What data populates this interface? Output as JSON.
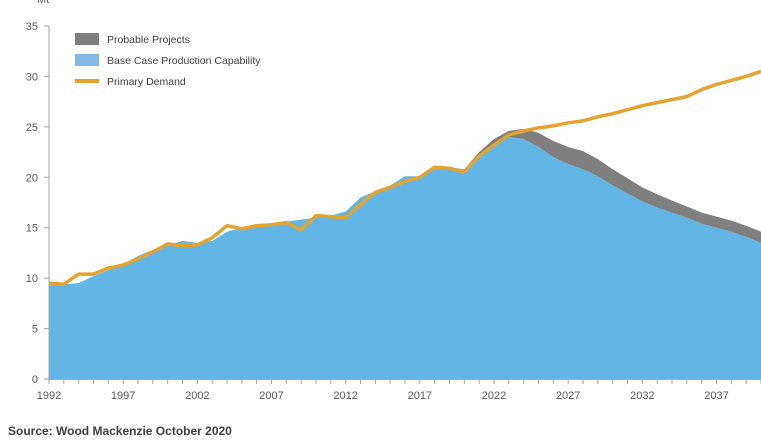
{
  "chart_data": {
    "type": "area",
    "ylabel": "Mt",
    "ylim": [
      0,
      35
    ],
    "yticks": [
      0,
      5,
      10,
      15,
      20,
      25,
      30,
      35
    ],
    "xlim": [
      1992,
      2040
    ],
    "xticks": [
      1992,
      1997,
      2002,
      2007,
      2012,
      2017,
      2022,
      2027,
      2032,
      2037
    ],
    "grid": false,
    "legend_position": "top-left",
    "x": [
      1992,
      1993,
      1994,
      1995,
      1996,
      1997,
      1998,
      1999,
      2000,
      2001,
      2002,
      2003,
      2004,
      2005,
      2006,
      2007,
      2008,
      2009,
      2010,
      2011,
      2012,
      2013,
      2014,
      2015,
      2016,
      2017,
      2018,
      2019,
      2020,
      2021,
      2022,
      2023,
      2024,
      2025,
      2026,
      2027,
      2028,
      2029,
      2030,
      2031,
      2032,
      2033,
      2034,
      2035,
      2036,
      2037,
      2038,
      2039,
      2040
    ],
    "series": [
      {
        "name": "Base Case Production Capability",
        "type": "area",
        "color": "#62b5e5",
        "values": [
          9.3,
          9.4,
          9.5,
          10.2,
          10.8,
          11.4,
          12.2,
          12.8,
          13.2,
          13.7,
          13.5,
          13.7,
          14.6,
          15.0,
          15.2,
          15.4,
          15.6,
          15.8,
          16.0,
          16.2,
          16.6,
          18.0,
          18.6,
          19.2,
          20.1,
          20.1,
          20.8,
          21.0,
          20.8,
          22.3,
          23.3,
          24.0,
          23.8,
          23.0,
          22.0,
          21.3,
          20.8,
          20.1,
          19.2,
          18.4,
          17.6,
          17.0,
          16.5,
          16.0,
          15.4,
          15.0,
          14.6,
          14.1,
          13.5
        ]
      },
      {
        "name": "Probable Projects",
        "type": "area",
        "color": "#7f7f7f",
        "values": [
          0,
          0,
          0,
          0,
          0,
          0,
          0,
          0,
          0,
          0,
          0,
          0,
          0,
          0,
          0,
          0,
          0,
          0,
          0,
          0,
          0,
          0,
          0,
          0,
          0,
          0,
          0,
          0,
          0,
          0.2,
          0.5,
          0.6,
          1.0,
          1.4,
          1.6,
          1.7,
          1.8,
          1.7,
          1.6,
          1.5,
          1.4,
          1.3,
          1.2,
          1.1,
          1.1,
          1.1,
          1.1,
          1.1,
          1.1
        ]
      },
      {
        "name": "Primary Demand",
        "type": "line",
        "color": "#e2a42e",
        "values": [
          9.5,
          9.4,
          10.4,
          10.4,
          11.0,
          11.3,
          11.9,
          12.6,
          13.4,
          13.2,
          13.3,
          14.0,
          15.2,
          14.9,
          15.2,
          15.3,
          15.5,
          14.8,
          16.2,
          16.1,
          16.0,
          17.3,
          18.5,
          19.0,
          19.6,
          20.0,
          21.0,
          20.9,
          20.5,
          22.1,
          23.2,
          24.2,
          24.6,
          24.9,
          25.1,
          25.4,
          25.6,
          26.0,
          26.3,
          26.7,
          27.1,
          27.4,
          27.7,
          28.0,
          28.7,
          29.2,
          29.6,
          30.0,
          30.5
        ]
      }
    ]
  },
  "legend": [
    {
      "label": "Probable Projects",
      "color": "#7f7f7f",
      "kind": "box"
    },
    {
      "label": "Base Case Production Capability",
      "color": "#85b9e5",
      "kind": "box"
    },
    {
      "label": "Primary Demand",
      "color": "#e2a42e",
      "kind": "line"
    }
  ],
  "source_text": "Source: Wood Mackenzie October 2020"
}
